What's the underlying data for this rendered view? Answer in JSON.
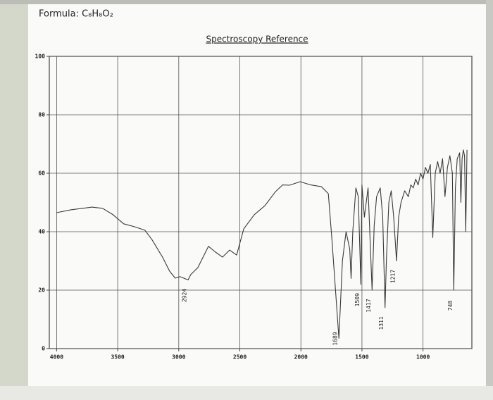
{
  "header": {
    "formula": "Formula: C₈H₈O₂"
  },
  "chart_data": {
    "type": "line",
    "title": "Spectroscopy Reference",
    "xlim": [
      4060,
      600
    ],
    "ylim": [
      0,
      100
    ],
    "xticks": [
      4000,
      3500,
      3000,
      2500,
      2000,
      1500,
      1000
    ],
    "yticks": [
      0,
      20,
      40,
      60,
      80,
      100
    ],
    "grid": true,
    "series": [
      {
        "color": "#3a3a3a",
        "x": [
          4000,
          3884,
          3711,
          3624,
          3538,
          3451,
          3364,
          3277,
          3220,
          3133,
          3075,
          3029,
          2989,
          2948,
          2924,
          2902,
          2844,
          2757,
          2699,
          2642,
          2584,
          2526,
          2468,
          2382,
          2295,
          2208,
          2150,
          2093,
          2006,
          1919,
          1832,
          1775,
          1746,
          1689,
          1660,
          1630,
          1600,
          1589,
          1575,
          1550,
          1530,
          1509,
          1500,
          1480,
          1450,
          1417,
          1400,
          1380,
          1350,
          1330,
          1311,
          1300,
          1280,
          1260,
          1240,
          1217,
          1200,
          1180,
          1150,
          1120,
          1100,
          1080,
          1060,
          1040,
          1020,
          1000,
          980,
          960,
          940,
          920,
          900,
          880,
          860,
          840,
          820,
          800,
          780,
          760,
          748,
          735,
          720,
          700,
          690,
          680,
          670,
          660,
          650,
          640
        ],
        "values": [
          46.5,
          47.5,
          48.4,
          48,
          45.8,
          42.7,
          41.7,
          40.5,
          37.3,
          31.3,
          26.5,
          24.1,
          24.6,
          23.9,
          23.5,
          25.3,
          27.7,
          35,
          33,
          31.3,
          33.7,
          32,
          41,
          45.8,
          48.9,
          53.7,
          56,
          55.9,
          57.1,
          56,
          55.4,
          53,
          37.3,
          3.5,
          30,
          40,
          34,
          24,
          40,
          55,
          52,
          22,
          56,
          45,
          55,
          20,
          42,
          52,
          55,
          45,
          14,
          30,
          50,
          54,
          45,
          30,
          45,
          50,
          54,
          52,
          56,
          55,
          58,
          56,
          60,
          58,
          62,
          60,
          63,
          38,
          60,
          64,
          60,
          65,
          52,
          62,
          66,
          60,
          20,
          55,
          65,
          67,
          50,
          65,
          68,
          66,
          40,
          68
        ]
      }
    ],
    "annotations": [
      {
        "value": 2924,
        "label": "2924"
      },
      {
        "value": 1689,
        "label": "1689"
      },
      {
        "value": 1509,
        "label": "1509"
      },
      {
        "value": 1417,
        "label": "1417"
      },
      {
        "value": 1311,
        "label": "1311"
      },
      {
        "value": 1217,
        "label": "1217"
      },
      {
        "value": 748,
        "label": "748"
      }
    ]
  }
}
